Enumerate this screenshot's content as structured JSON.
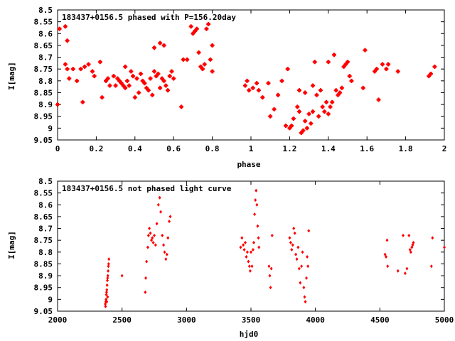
{
  "chart_data": [
    {
      "type": "scatter",
      "title": "183437+0156.5 phased with P=156.20day",
      "xlabel": "phase",
      "ylabel": "I[mag]",
      "xlim": [
        0,
        2
      ],
      "ylim": [
        9.05,
        8.5
      ],
      "y_inverted": true,
      "x_ticks": [
        "0",
        "0.2",
        "0.4",
        "0.6",
        "0.8",
        "1",
        "1.2",
        "1.4",
        "1.6",
        "1.8",
        "2"
      ],
      "y_ticks": [
        "8.5",
        "8.55",
        "8.6",
        "8.65",
        "8.7",
        "8.75",
        "8.8",
        "8.85",
        "8.9",
        "8.95",
        "9",
        "9.05"
      ],
      "marker_color": "#ff0000",
      "marker": "star",
      "points": [
        [
          0.0,
          8.9
        ],
        [
          0.01,
          8.58
        ],
        [
          0.04,
          8.57
        ],
        [
          0.04,
          8.73
        ],
        [
          0.05,
          8.75
        ],
        [
          0.05,
          8.63
        ],
        [
          0.06,
          8.79
        ],
        [
          0.08,
          8.75
        ],
        [
          0.1,
          8.8
        ],
        [
          0.12,
          8.75
        ],
        [
          0.13,
          8.89
        ],
        [
          0.14,
          8.74
        ],
        [
          0.16,
          8.73
        ],
        [
          0.18,
          8.76
        ],
        [
          0.19,
          8.78
        ],
        [
          0.22,
          8.72
        ],
        [
          0.23,
          8.87
        ],
        [
          0.25,
          8.8
        ],
        [
          0.26,
          8.79
        ],
        [
          0.27,
          8.82
        ],
        [
          0.29,
          8.78
        ],
        [
          0.3,
          8.82
        ],
        [
          0.31,
          8.79
        ],
        [
          0.32,
          8.8
        ],
        [
          0.33,
          8.81
        ],
        [
          0.34,
          8.82
        ],
        [
          0.35,
          8.83
        ],
        [
          0.35,
          8.74
        ],
        [
          0.36,
          8.8
        ],
        [
          0.37,
          8.82
        ],
        [
          0.38,
          8.76
        ],
        [
          0.39,
          8.78
        ],
        [
          0.4,
          8.87
        ],
        [
          0.41,
          8.79
        ],
        [
          0.42,
          8.85
        ],
        [
          0.43,
          8.77
        ],
        [
          0.44,
          8.8
        ],
        [
          0.45,
          8.81
        ],
        [
          0.46,
          8.83
        ],
        [
          0.47,
          8.84
        ],
        [
          0.48,
          8.79
        ],
        [
          0.49,
          8.86
        ],
        [
          0.5,
          8.76
        ],
        [
          0.5,
          8.66
        ],
        [
          0.51,
          8.78
        ],
        [
          0.52,
          8.77
        ],
        [
          0.53,
          8.83
        ],
        [
          0.53,
          8.64
        ],
        [
          0.54,
          8.79
        ],
        [
          0.55,
          8.8
        ],
        [
          0.55,
          8.65
        ],
        [
          0.56,
          8.82
        ],
        [
          0.57,
          8.84
        ],
        [
          0.58,
          8.78
        ],
        [
          0.59,
          8.76
        ],
        [
          0.6,
          8.79
        ],
        [
          0.64,
          8.91
        ],
        [
          0.65,
          8.71
        ],
        [
          0.67,
          8.71
        ],
        [
          0.69,
          8.57
        ],
        [
          0.7,
          8.6
        ],
        [
          0.71,
          8.59
        ],
        [
          0.72,
          8.58
        ],
        [
          0.73,
          8.68
        ],
        [
          0.74,
          8.74
        ],
        [
          0.75,
          8.75
        ],
        [
          0.76,
          8.73
        ],
        [
          0.77,
          8.58
        ],
        [
          0.78,
          8.56
        ],
        [
          0.79,
          8.71
        ],
        [
          0.8,
          8.65
        ],
        [
          0.8,
          8.76
        ],
        [
          0.97,
          8.82
        ],
        [
          0.98,
          8.8
        ],
        [
          0.99,
          8.84
        ],
        [
          1.01,
          8.83
        ],
        [
          1.03,
          8.81
        ],
        [
          1.04,
          8.84
        ],
        [
          1.06,
          8.87
        ],
        [
          1.09,
          8.81
        ],
        [
          1.1,
          8.95
        ],
        [
          1.12,
          8.92
        ],
        [
          1.14,
          8.86
        ],
        [
          1.16,
          8.8
        ],
        [
          1.18,
          8.99
        ],
        [
          1.19,
          8.75
        ],
        [
          1.2,
          9.0
        ],
        [
          1.21,
          8.99
        ],
        [
          1.22,
          8.96
        ],
        [
          1.24,
          8.91
        ],
        [
          1.25,
          8.93
        ],
        [
          1.25,
          8.84
        ],
        [
          1.26,
          9.02
        ],
        [
          1.27,
          9.01
        ],
        [
          1.28,
          8.97
        ],
        [
          1.28,
          8.85
        ],
        [
          1.29,
          9.0
        ],
        [
          1.3,
          8.94
        ],
        [
          1.31,
          8.98
        ],
        [
          1.32,
          8.93
        ],
        [
          1.32,
          8.82
        ],
        [
          1.33,
          8.72
        ],
        [
          1.34,
          8.86
        ],
        [
          1.35,
          8.95
        ],
        [
          1.36,
          8.84
        ],
        [
          1.37,
          8.91
        ],
        [
          1.38,
          8.93
        ],
        [
          1.39,
          8.89
        ],
        [
          1.4,
          8.94
        ],
        [
          1.4,
          8.72
        ],
        [
          1.41,
          8.91
        ],
        [
          1.42,
          8.89
        ],
        [
          1.43,
          8.69
        ],
        [
          1.44,
          8.84
        ],
        [
          1.45,
          8.86
        ],
        [
          1.46,
          8.85
        ],
        [
          1.47,
          8.83
        ],
        [
          1.48,
          8.74
        ],
        [
          1.49,
          8.73
        ],
        [
          1.5,
          8.72
        ],
        [
          1.51,
          8.78
        ],
        [
          1.52,
          8.8
        ],
        [
          1.58,
          8.83
        ],
        [
          1.59,
          8.67
        ],
        [
          1.64,
          8.76
        ],
        [
          1.65,
          8.75
        ],
        [
          1.66,
          8.88
        ],
        [
          1.68,
          8.73
        ],
        [
          1.7,
          8.75
        ],
        [
          1.71,
          8.73
        ],
        [
          1.76,
          8.76
        ],
        [
          1.92,
          8.78
        ],
        [
          1.93,
          8.77
        ],
        [
          1.95,
          8.74
        ]
      ]
    },
    {
      "type": "scatter",
      "title": "183437+0156.5 not phased light curve",
      "xlabel": "hjd0",
      "ylabel": "I[mag]",
      "xlim": [
        2000,
        5000
      ],
      "ylim": [
        9.05,
        8.5
      ],
      "y_inverted": true,
      "x_ticks": [
        "2000",
        "2500",
        "3000",
        "3500",
        "4000",
        "4500",
        "5000"
      ],
      "y_ticks": [
        "8.5",
        "8.55",
        "8.6",
        "8.65",
        "8.7",
        "8.75",
        "8.8",
        "8.85",
        "8.9",
        "8.95",
        "9",
        "9.05"
      ],
      "marker_color": "#ff0000",
      "marker": "diamond",
      "points": [
        [
          2370,
          9.02
        ],
        [
          2372,
          9.03
        ],
        [
          2374,
          9.01
        ],
        [
          2376,
          9.0
        ],
        [
          2378,
          8.98
        ],
        [
          2380,
          8.97
        ],
        [
          2382,
          8.96
        ],
        [
          2384,
          8.94
        ],
        [
          2386,
          8.92
        ],
        [
          2388,
          8.91
        ],
        [
          2390,
          8.9
        ],
        [
          2392,
          8.88
        ],
        [
          2394,
          8.86
        ],
        [
          2396,
          8.85
        ],
        [
          2398,
          8.83
        ],
        [
          2388,
          8.99
        ],
        [
          2382,
          9.01
        ],
        [
          2500,
          8.9
        ],
        [
          2680,
          8.97
        ],
        [
          2684,
          8.91
        ],
        [
          2690,
          8.84
        ],
        [
          2700,
          8.78
        ],
        [
          2705,
          8.73
        ],
        [
          2712,
          8.7
        ],
        [
          2720,
          8.72
        ],
        [
          2728,
          8.75
        ],
        [
          2735,
          8.74
        ],
        [
          2742,
          8.76
        ],
        [
          2750,
          8.73
        ],
        [
          2760,
          8.77
        ],
        [
          2770,
          8.68
        ],
        [
          2782,
          8.6
        ],
        [
          2792,
          8.57
        ],
        [
          2800,
          8.63
        ],
        [
          2812,
          8.73
        ],
        [
          2822,
          8.77
        ],
        [
          2830,
          8.8
        ],
        [
          2840,
          8.83
        ],
        [
          2848,
          8.81
        ],
        [
          2856,
          8.74
        ],
        [
          2866,
          8.67
        ],
        [
          2874,
          8.65
        ],
        [
          3420,
          8.78
        ],
        [
          3430,
          8.74
        ],
        [
          3440,
          8.77
        ],
        [
          3448,
          8.79
        ],
        [
          3456,
          8.76
        ],
        [
          3464,
          8.82
        ],
        [
          3472,
          8.8
        ],
        [
          3480,
          8.84
        ],
        [
          3488,
          8.86
        ],
        [
          3494,
          8.88
        ],
        [
          3500,
          8.8
        ],
        [
          3508,
          8.86
        ],
        [
          3516,
          8.79
        ],
        [
          3522,
          8.76
        ],
        [
          3528,
          8.64
        ],
        [
          3534,
          8.58
        ],
        [
          3540,
          8.54
        ],
        [
          3546,
          8.6
        ],
        [
          3552,
          8.69
        ],
        [
          3558,
          8.74
        ],
        [
          3562,
          8.78
        ],
        [
          3640,
          8.86
        ],
        [
          3646,
          8.9
        ],
        [
          3652,
          8.95
        ],
        [
          3658,
          8.87
        ],
        [
          3664,
          8.73
        ],
        [
          3800,
          8.74
        ],
        [
          3808,
          8.76
        ],
        [
          3816,
          8.79
        ],
        [
          3824,
          8.77
        ],
        [
          3832,
          8.7
        ],
        [
          3840,
          8.72
        ],
        [
          3848,
          8.81
        ],
        [
          3856,
          8.83
        ],
        [
          3866,
          8.78
        ],
        [
          3874,
          8.87
        ],
        [
          3882,
          8.93
        ],
        [
          3892,
          8.86
        ],
        [
          3900,
          8.8
        ],
        [
          3910,
          8.95
        ],
        [
          3916,
          8.99
        ],
        [
          3922,
          9.01
        ],
        [
          3930,
          8.91
        ],
        [
          3936,
          8.82
        ],
        [
          3942,
          8.86
        ],
        [
          3948,
          8.71
        ],
        [
          4540,
          8.81
        ],
        [
          4548,
          8.82
        ],
        [
          4556,
          8.75
        ],
        [
          4560,
          8.86
        ],
        [
          4640,
          8.88
        ],
        [
          4680,
          8.73
        ],
        [
          4696,
          8.89
        ],
        [
          4710,
          8.87
        ],
        [
          4726,
          8.73
        ],
        [
          4734,
          8.79
        ],
        [
          4740,
          8.8
        ],
        [
          4748,
          8.78
        ],
        [
          4754,
          8.77
        ],
        [
          4760,
          8.76
        ],
        [
          4900,
          8.86
        ],
        [
          4908,
          8.74
        ],
        [
          5000,
          8.78
        ]
      ]
    }
  ]
}
